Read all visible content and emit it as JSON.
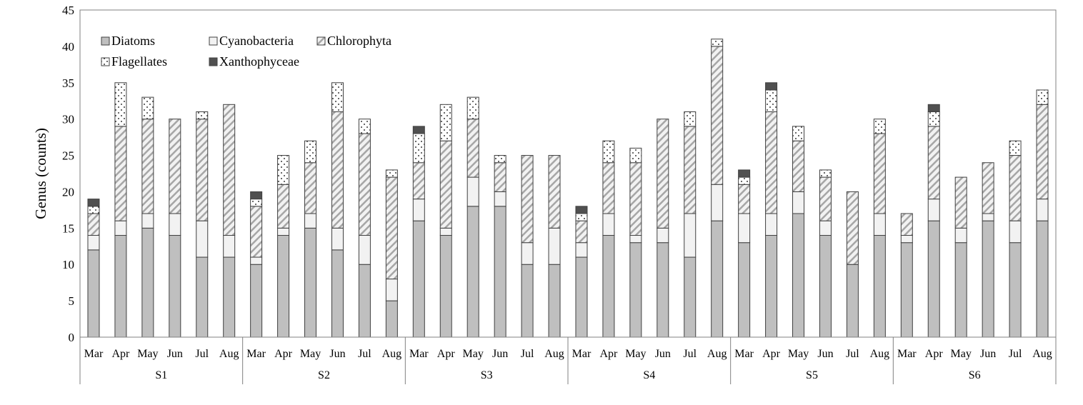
{
  "chart_data": {
    "type": "bar",
    "stacked": true,
    "title": "",
    "xlabel": "",
    "ylabel": "Genus (counts)",
    "ylim": [
      0,
      45
    ],
    "yticks": [
      0,
      5,
      10,
      15,
      20,
      25,
      30,
      35,
      40,
      45
    ],
    "grid": false,
    "legend_position": "top-left",
    "groups": [
      "S1",
      "S2",
      "S3",
      "S4",
      "S5",
      "S6"
    ],
    "months": [
      "Mar",
      "Apr",
      "May",
      "Jun",
      "Jul",
      "Aug"
    ],
    "series": [
      {
        "name": "Diatoms",
        "fill": "#bfbfbf",
        "pattern": "solid",
        "values": [
          12,
          14,
          15,
          14,
          11,
          11,
          10,
          14,
          15,
          12,
          10,
          5,
          16,
          14,
          18,
          18,
          10,
          10,
          11,
          14,
          13,
          13,
          11,
          16,
          13,
          14,
          17,
          14,
          10,
          14,
          13,
          16,
          13,
          16,
          13,
          16
        ]
      },
      {
        "name": "Cyanobacteria",
        "fill": "#f2f2f2",
        "pattern": "solid",
        "values": [
          2,
          2,
          2,
          3,
          5,
          3,
          1,
          1,
          2,
          3,
          4,
          3,
          3,
          1,
          4,
          2,
          3,
          5,
          2,
          3,
          1,
          2,
          6,
          5,
          4,
          3,
          3,
          2,
          0,
          3,
          1,
          3,
          2,
          1,
          3,
          3
        ]
      },
      {
        "name": "Chlorophyta",
        "fill": "#f2f2f2",
        "pattern": "hatch",
        "values": [
          3,
          13,
          13,
          13,
          14,
          18,
          7,
          6,
          7,
          16,
          14,
          14,
          5,
          12,
          8,
          4,
          12,
          10,
          3,
          7,
          10,
          15,
          12,
          19,
          4,
          14,
          7,
          6,
          10,
          11,
          3,
          10,
          7,
          7,
          9,
          13
        ]
      },
      {
        "name": "Flagellates",
        "fill": "#ffffff",
        "pattern": "dots",
        "values": [
          1,
          6,
          3,
          0,
          1,
          0,
          1,
          4,
          3,
          4,
          2,
          1,
          4,
          5,
          3,
          1,
          0,
          0,
          1,
          3,
          2,
          0,
          2,
          1,
          1,
          3,
          2,
          1,
          0,
          2,
          0,
          2,
          0,
          0,
          2,
          2
        ]
      },
      {
        "name": "Xanthophyceae",
        "fill": "#505050",
        "pattern": "solid",
        "values": [
          1,
          0,
          0,
          0,
          0,
          0,
          1,
          0,
          0,
          0,
          0,
          0,
          1,
          0,
          0,
          0,
          0,
          0,
          1,
          0,
          0,
          0,
          0,
          0,
          1,
          1,
          0,
          0,
          0,
          0,
          0,
          1,
          0,
          0,
          0,
          0
        ]
      }
    ]
  }
}
